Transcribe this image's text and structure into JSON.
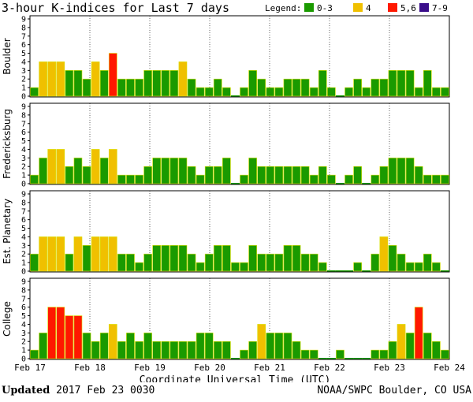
{
  "title": "3-hour K-indices for Last 7 days",
  "legend": {
    "label": "Legend:",
    "items": [
      {
        "label": "0-3",
        "color": "#1a9a00"
      },
      {
        "label": "4",
        "color": "#f0c000"
      },
      {
        "label": "5,6",
        "color": "#ff1800"
      },
      {
        "label": "7-9",
        "color": "#3a0d8a"
      }
    ]
  },
  "footer": {
    "updated_label": "Updated",
    "updated_value": "2017 Feb 23 0030",
    "credit": "NOAA/SWPC Boulder, CO USA"
  },
  "chart_data": {
    "type": "bar",
    "title": "3-hour K-indices for Last 7 days",
    "xlabel": "Coordinate Universal Time (UTC)",
    "x_ticks": [
      "Feb 17",
      "Feb 18",
      "Feb 19",
      "Feb 20",
      "Feb 21",
      "Feb 22",
      "Feb 23",
      "Feb 24"
    ],
    "ylim": [
      0,
      9
    ],
    "y_ticks": [
      0,
      1,
      2,
      3,
      4,
      5,
      6,
      7,
      8,
      9
    ],
    "bins_per_day": 8,
    "series": [
      {
        "name": "Boulder",
        "values": [
          1,
          4,
          4,
          4,
          3,
          3,
          2,
          4,
          3,
          5,
          2,
          2,
          2,
          3,
          3,
          3,
          3,
          4,
          2,
          1,
          1,
          2,
          1,
          0,
          1,
          3,
          2,
          1,
          1,
          2,
          2,
          2,
          1,
          3,
          1,
          0,
          1,
          2,
          1,
          2,
          2,
          3,
          3,
          3,
          1,
          3,
          1,
          1
        ]
      },
      {
        "name": "Fredericksburg",
        "values": [
          1,
          3,
          4,
          4,
          2,
          3,
          2,
          4,
          3,
          4,
          1,
          1,
          1,
          2,
          3,
          3,
          3,
          3,
          2,
          1,
          2,
          2,
          3,
          0,
          1,
          3,
          2,
          2,
          2,
          2,
          2,
          2,
          1,
          2,
          1,
          0,
          1,
          2,
          0,
          1,
          2,
          3,
          3,
          3,
          2,
          1,
          1,
          1
        ]
      },
      {
        "name": "Est. Planetary",
        "values": [
          2,
          4,
          4,
          4,
          2,
          4,
          3,
          4,
          4,
          4,
          2,
          2,
          1,
          2,
          3,
          3,
          3,
          3,
          2,
          1,
          2,
          3,
          3,
          1,
          1,
          3,
          2,
          2,
          2,
          3,
          3,
          2,
          2,
          1,
          0,
          0,
          0,
          1,
          0,
          2,
          4,
          3,
          2,
          1,
          1,
          2,
          1,
          0
        ]
      },
      {
        "name": "College",
        "values": [
          1,
          3,
          6,
          6,
          5,
          5,
          3,
          2,
          3,
          4,
          2,
          3,
          2,
          3,
          2,
          2,
          2,
          2,
          2,
          3,
          3,
          2,
          2,
          0,
          1,
          2,
          4,
          3,
          3,
          3,
          2,
          1,
          1,
          0,
          0,
          1,
          0,
          0,
          0,
          1,
          1,
          2,
          4,
          3,
          6,
          3,
          2,
          1
        ]
      }
    ]
  }
}
